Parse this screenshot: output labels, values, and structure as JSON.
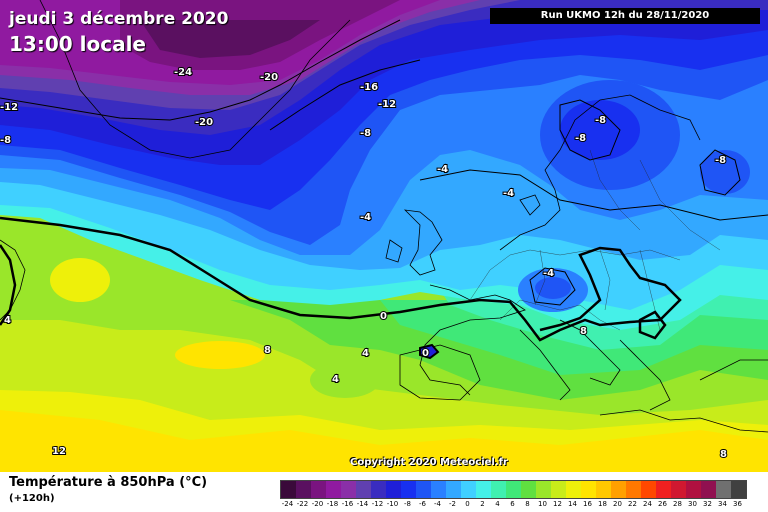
{
  "header": {
    "date": "jeudi 3 décembre 2020",
    "time": "13:00 locale",
    "run": "Run UKMO 12h du 28/11/2020"
  },
  "footer": {
    "title": "Température à 850hPa (°C)",
    "lead": "(+120h)",
    "copyright": "Copyright 2020 Meteociel.fr"
  },
  "colorbar": {
    "labels": [
      "-24",
      "-22",
      "-20",
      "-18",
      "-16",
      "-14",
      "-12",
      "-10",
      "-8",
      "-6",
      "-4",
      "-2",
      "0",
      "2",
      "4",
      "6",
      "8",
      "10",
      "12",
      "14",
      "16",
      "18",
      "20",
      "22",
      "24",
      "26",
      "28",
      "30",
      "32",
      "34",
      "36"
    ],
    "colors": [
      "#3a0a3a",
      "#5a1060",
      "#7a1480",
      "#901aa0",
      "#8a2fa8",
      "#6040b0",
      "#3a2cc0",
      "#1f1fd8",
      "#1830f0",
      "#1f55f5",
      "#2a80ff",
      "#33a8ff",
      "#40d0ff",
      "#45f0e8",
      "#40f0b0",
      "#40e878",
      "#60e040",
      "#9ae62a",
      "#c8ec1a",
      "#eef00a",
      "#ffe400",
      "#ffc800",
      "#ffa000",
      "#ff7800",
      "#ff4800",
      "#f02020",
      "#d01830",
      "#b01040",
      "#901050",
      "#707070",
      "#404040"
    ]
  },
  "contour_labels": [
    "-24",
    "-20",
    "-20",
    "-16",
    "-12",
    "-12",
    "-8",
    "-8",
    "-8",
    "-8",
    "-8",
    "-4",
    "-4",
    "-4",
    "-4",
    "0",
    "0",
    "4",
    "4",
    "4",
    "8",
    "8",
    "12",
    "8"
  ]
}
